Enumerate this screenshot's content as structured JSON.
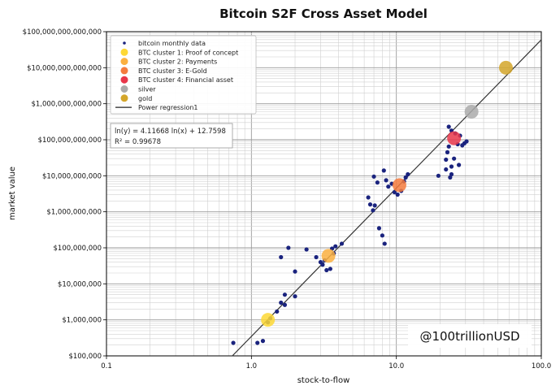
{
  "chart_data": {
    "type": "scatter",
    "title": "Bitcoin S2F Cross Asset Model",
    "xlabel": "stock-to-flow",
    "ylabel": "market value",
    "xscale": "log",
    "yscale": "log",
    "xlim": [
      0.1,
      100
    ],
    "ylim": [
      100000,
      100000000000000
    ],
    "grid": true,
    "legend_position": "top-left",
    "x_ticks": [
      {
        "value": 0.1,
        "label": "0.1"
      },
      {
        "value": 1,
        "label": "1.0"
      },
      {
        "value": 10,
        "label": "10.0"
      },
      {
        "value": 100,
        "label": "100.0"
      }
    ],
    "y_ticks": [
      {
        "value": 100000,
        "label": "$100,000"
      },
      {
        "value": 1000000,
        "label": "$1,000,000"
      },
      {
        "value": 10000000,
        "label": "$10,000,000"
      },
      {
        "value": 100000000,
        "label": "$100,000,000"
      },
      {
        "value": 1000000000,
        "label": "$1,000,000,000"
      },
      {
        "value": 10000000000,
        "label": "$10,000,000,000"
      },
      {
        "value": 100000000000,
        "label": "$100,000,000,000"
      },
      {
        "value": 1000000000000,
        "label": "$1,000,000,000,000"
      },
      {
        "value": 10000000000000,
        "label": "$10,000,000,000,000"
      },
      {
        "value": 100000000000000,
        "label": "$100,000,000,000,000"
      }
    ],
    "legend": [
      {
        "label": "bitcoin monthly data",
        "marker": "small-dot",
        "color": "#1a237e"
      },
      {
        "label": "BTC cluster 1: Proof of concept",
        "marker": "circle",
        "color": "#fdd835"
      },
      {
        "label": "BTC cluster 2: Payments",
        "marker": "circle",
        "color": "#fbb040"
      },
      {
        "label": "BTC cluster 3: E-Gold",
        "marker": "circle",
        "color": "#f47b3e"
      },
      {
        "label": "BTC cluster 4: Financial asset",
        "marker": "circle",
        "color": "#e8364a"
      },
      {
        "label": "silver",
        "marker": "circle",
        "color": "#aaaaaa"
      },
      {
        "label": "gold",
        "marker": "circle",
        "color": "#d4a62a"
      },
      {
        "label": "Power regression1",
        "marker": "line",
        "color": "#222222"
      }
    ],
    "equation_lines": [
      "ln(y) = 4.11668 ln(x) + 12.7598",
      "R² = 0.99678"
    ],
    "regression": {
      "slope": 4.11668,
      "intercept": 12.7598,
      "x_range": [
        0.1,
        100
      ]
    },
    "clusters": [
      {
        "name": "BTC cluster 1: Proof of concept",
        "x": 1.3,
        "y": 1000000,
        "color": "#fdd835"
      },
      {
        "name": "BTC cluster 2: Payments",
        "x": 3.4,
        "y": 60000000,
        "color": "#fbb040"
      },
      {
        "name": "BTC cluster 3: E-Gold",
        "x": 10.5,
        "y": 5500000000,
        "color": "#f47b3e"
      },
      {
        "name": "BTC cluster 4: Financial asset",
        "x": 25,
        "y": 110000000000,
        "color": "#e8364a"
      },
      {
        "name": "silver",
        "x": 33,
        "y": 600000000000,
        "color": "#aaaaaa"
      },
      {
        "name": "gold",
        "x": 57,
        "y": 10000000000000,
        "color": "#d4a62a"
      }
    ],
    "series": [
      {
        "name": "bitcoin monthly data",
        "color": "#1a237e",
        "points": [
          [
            0.75,
            230000
          ],
          [
            1.1,
            230000
          ],
          [
            1.2,
            260000
          ],
          [
            1.3,
            850000
          ],
          [
            1.35,
            1100000
          ],
          [
            1.5,
            1700000
          ],
          [
            1.6,
            3000000
          ],
          [
            1.7,
            2600000
          ],
          [
            1.7,
            5000000
          ],
          [
            2.0,
            4500000
          ],
          [
            1.6,
            55000000
          ],
          [
            1.8,
            100000000
          ],
          [
            2.0,
            22000000
          ],
          [
            2.4,
            90000000
          ],
          [
            2.8,
            55000000
          ],
          [
            3.0,
            40000000
          ],
          [
            3.1,
            34000000
          ],
          [
            3.3,
            24000000
          ],
          [
            3.5,
            26000000
          ],
          [
            3.6,
            95000000
          ],
          [
            3.8,
            110000000
          ],
          [
            4.2,
            130000000
          ],
          [
            3.2,
            45000000
          ],
          [
            3.7,
            70000000
          ],
          [
            6.4,
            2500000000
          ],
          [
            6.6,
            1600000000
          ],
          [
            6.9,
            1100000000
          ],
          [
            7.1,
            1500000000
          ],
          [
            7.0,
            9500000000
          ],
          [
            7.4,
            6500000000
          ],
          [
            7.6,
            350000000
          ],
          [
            8.0,
            220000000
          ],
          [
            8.3,
            130000000
          ],
          [
            8.2,
            14000000000
          ],
          [
            8.5,
            7500000000
          ],
          [
            8.8,
            5000000000
          ],
          [
            9.3,
            6000000000
          ],
          [
            9.7,
            3500000000
          ],
          [
            10.2,
            3000000000
          ],
          [
            10.8,
            3800000000
          ],
          [
            11.3,
            7000000000
          ],
          [
            11.6,
            9000000000
          ],
          [
            12.0,
            11000000000
          ],
          [
            19.5,
            10000000000
          ],
          [
            22.0,
            15000000000
          ],
          [
            22.0,
            28000000000
          ],
          [
            22.5,
            45000000000
          ],
          [
            23.0,
            65000000000
          ],
          [
            23.5,
            9000000000
          ],
          [
            24.0,
            11000000000
          ],
          [
            24.0,
            18000000000
          ],
          [
            23.0,
            230000000000
          ],
          [
            24.0,
            180000000000
          ],
          [
            25.5,
            150000000000
          ],
          [
            26.5,
            75000000000
          ],
          [
            27.5,
            130000000000
          ],
          [
            28.5,
            70000000000
          ],
          [
            29.5,
            80000000000
          ],
          [
            30.5,
            90000000000
          ],
          [
            25.0,
            30000000000
          ],
          [
            27.0,
            20000000000
          ]
        ]
      }
    ],
    "watermark": "@100trillionUSD"
  }
}
